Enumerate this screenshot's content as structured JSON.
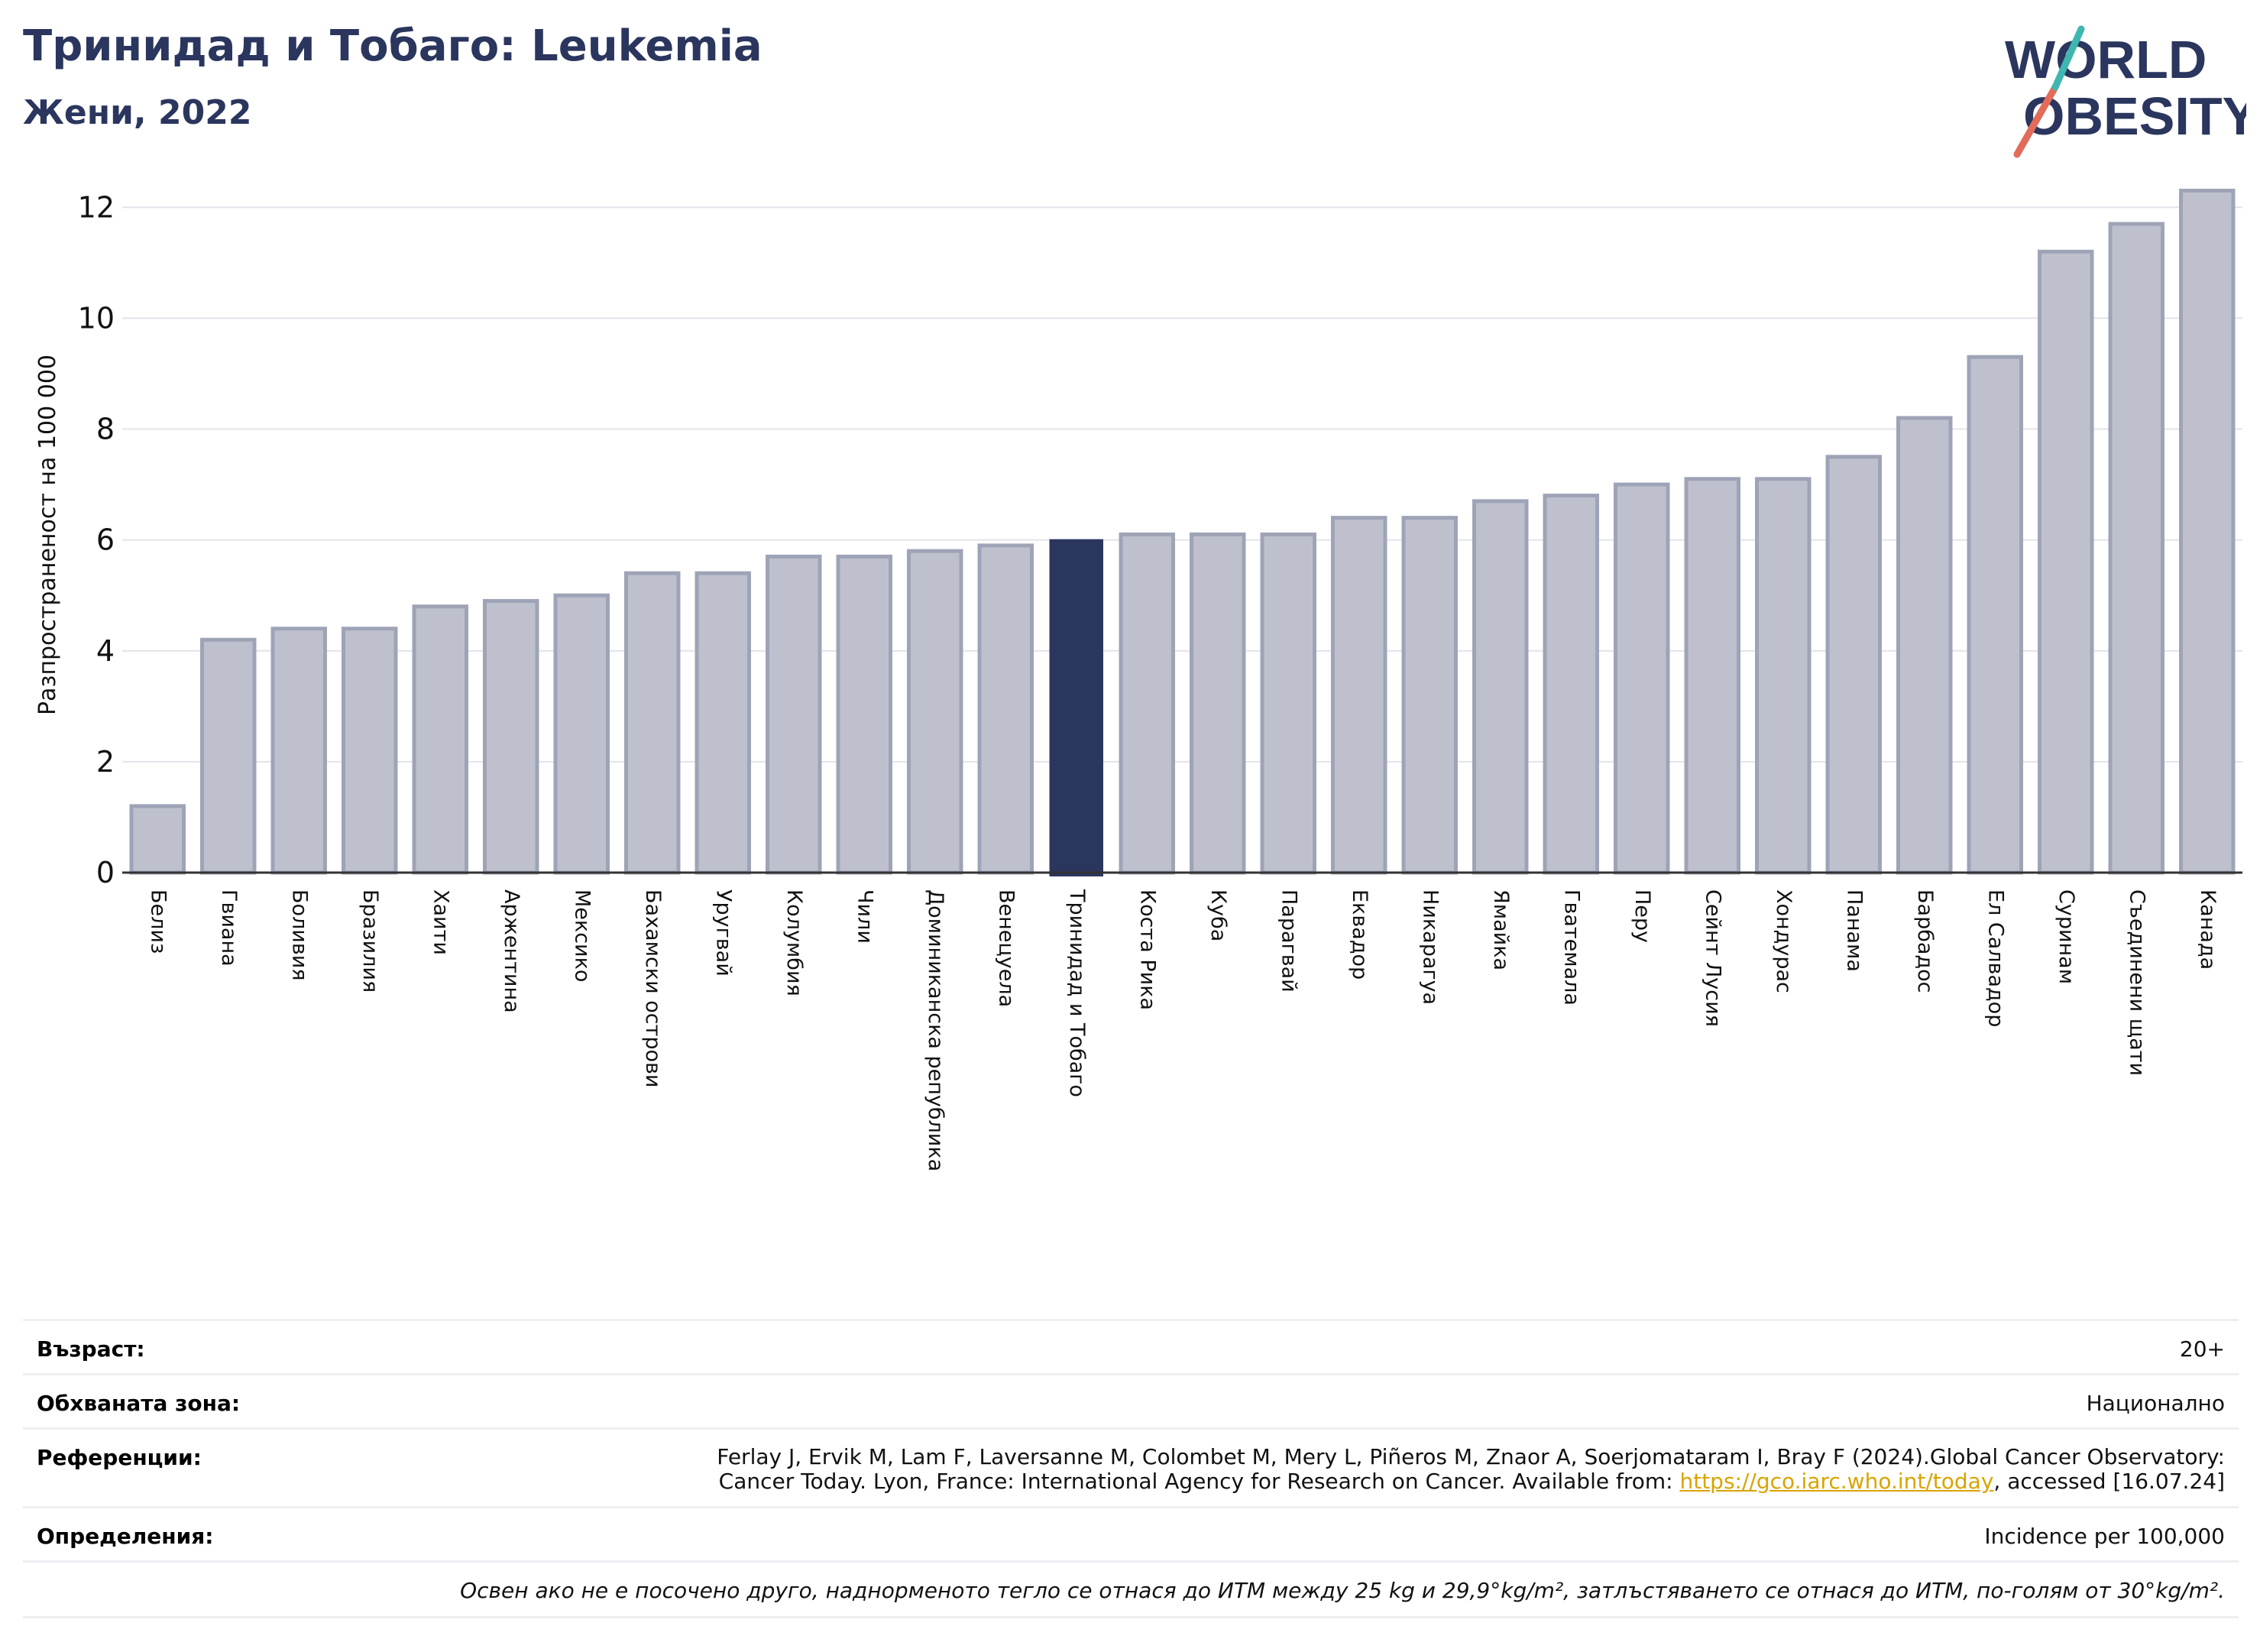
{
  "header": {
    "title": "Тринидад и Тобаго: Leukemia",
    "subtitle": "Жени, 2022",
    "logo_text_line1": "WORLD",
    "logo_text_line2": "OBESITY"
  },
  "chart_data": {
    "type": "bar",
    "ylabel": "Разпространеност  на 100 000",
    "xlabel": "",
    "ylim": [
      0,
      12.5
    ],
    "yticks": [
      0,
      2,
      4,
      6,
      8,
      10,
      12
    ],
    "grid": true,
    "highlight": "Тринидад и Тобаго",
    "colors": {
      "bar": "#bec1cd",
      "bar_edge": "#9ea3b7",
      "highlight": "#2b365e",
      "grid": "#e3e4ea"
    },
    "categories": [
      "Белиз",
      "Гвиана",
      "Боливия",
      "Бразилия",
      "Хаити",
      "Аржентина",
      "Мексико",
      "Бахамски острови",
      "Уругвай",
      "Колумбия",
      "Чили",
      "Доминиканска република",
      "Венецуела",
      "Тринидад и Тобаго",
      "Коста Рика",
      "Куба",
      "Парагвай",
      "Еквадор",
      "Никарагуа",
      "Ямайка",
      "Гватемала",
      "Перу",
      "Сейнт Лусия",
      "Хондурас",
      "Панама",
      "Барбадос",
      "Ел Салвадор",
      "Суринам",
      "Съединени щати",
      "Канада"
    ],
    "values": [
      1.2,
      4.2,
      4.4,
      4.4,
      4.8,
      4.9,
      5.0,
      5.4,
      5.4,
      5.7,
      5.7,
      5.8,
      5.9,
      6.0,
      6.1,
      6.1,
      6.1,
      6.4,
      6.4,
      6.7,
      6.8,
      7.0,
      7.1,
      7.1,
      7.5,
      8.2,
      9.3,
      11.2,
      11.7,
      12.3
    ]
  },
  "info": {
    "age_label": "Възраст:",
    "age_value": "20+",
    "area_label": "Обхваната зона:",
    "area_value": "Национално",
    "ref_label": "Референции:",
    "ref_line1": "Ferlay J, Ervik M, Lam F, Laversanne M, Colombet M, Mery L, Piñeros M, Znaor A, Soerjomataram I, Bray F (2024).Global Cancer Observatory:",
    "ref_line2_pre": "Cancer Today. Lyon, France: International Agency for Research on Cancer. Available from: ",
    "ref_link": "https://gco.iarc.who.int/today",
    "ref_line2_post": ", accessed [16.07.24]",
    "def_label": "Определения:",
    "def_value": "Incidence per 100,000",
    "note": "Освен ако не е посочено друго, наднорменото тегло се отнася до ИТМ между 25 kg и 29,9°kg/m², затлъстяването се отнася до ИТМ, по-голям от 30°kg/m²."
  }
}
